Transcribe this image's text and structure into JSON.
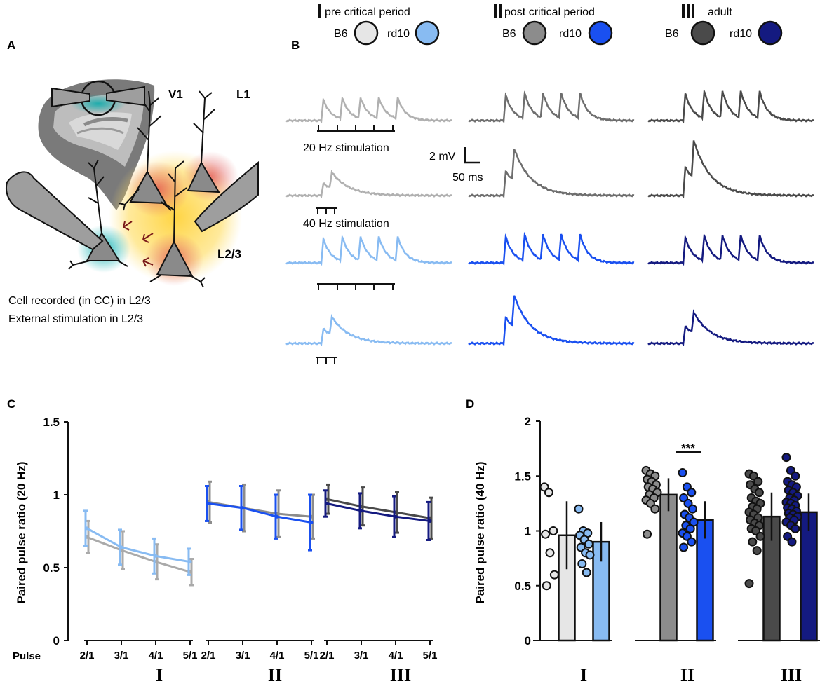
{
  "panels": {
    "a": "A",
    "b": "B",
    "c": "C",
    "d": "D"
  },
  "legend": {
    "groups": [
      {
        "numeral": "I",
        "label": "pre critical period",
        "b6_label": "B6",
        "rd10_label": "rd10",
        "b6_color": "#e6e6e6",
        "rd10_color": "#88bbf2"
      },
      {
        "numeral": "II",
        "label": "post critical period",
        "b6_label": "B6",
        "rd10_label": "rd10",
        "b6_color": "#8c8c8c",
        "rd10_color": "#1a50f0"
      },
      {
        "numeral": "III",
        "label": "adult",
        "b6_label": "B6",
        "rd10_label": "rd10",
        "b6_color": "#4a4a4a",
        "rd10_color": "#141a80"
      }
    ]
  },
  "schematic": {
    "label_v1": "V1",
    "label_l1": "L1",
    "label_l23": "L2/3",
    "caption_line1": "Cell recorded (in CC) in L2/3",
    "caption_line2": "External stimulation in L2/3"
  },
  "traces": {
    "stim20_label": "20 Hz stimulation",
    "stim40_label": "40 Hz stimulation",
    "scale_mv": "2 mV",
    "scale_ms": "50 ms"
  },
  "chart_data": [
    {
      "type": "line",
      "panel": "C",
      "ylabel": "Paired pulse ratio (20 Hz)",
      "xlabel": "Pulse",
      "ylim": [
        0,
        1.5
      ],
      "yticks": [
        0,
        0.5,
        1,
        1.5
      ],
      "ytick_labels": [
        "0",
        "0.5",
        "1",
        "1.5"
      ],
      "categories": [
        "2/1",
        "3/1",
        "4/1",
        "5/1"
      ],
      "groups": [
        {
          "numeral": "I",
          "series": [
            {
              "name": "B6",
              "color": "#aaaaaa",
              "values": [
                0.71,
                0.62,
                0.54,
                0.47
              ],
              "errors": [
                0.11,
                0.13,
                0.12,
                0.09
              ]
            },
            {
              "name": "rd10",
              "color": "#88bbf2",
              "values": [
                0.77,
                0.64,
                0.58,
                0.54
              ],
              "errors": [
                0.12,
                0.12,
                0.12,
                0.09
              ]
            }
          ]
        },
        {
          "numeral": "II",
          "series": [
            {
              "name": "B6",
              "color": "#8c8c8c",
              "values": [
                0.95,
                0.91,
                0.87,
                0.85
              ],
              "errors": [
                0.14,
                0.16,
                0.16,
                0.15
              ]
            },
            {
              "name": "rd10",
              "color": "#1a50f0",
              "values": [
                0.94,
                0.91,
                0.85,
                0.81
              ],
              "errors": [
                0.12,
                0.15,
                0.15,
                0.19
              ]
            }
          ]
        },
        {
          "numeral": "III",
          "series": [
            {
              "name": "B6",
              "color": "#4a4a4a",
              "values": [
                0.97,
                0.92,
                0.88,
                0.84
              ],
              "errors": [
                0.1,
                0.13,
                0.14,
                0.14
              ]
            },
            {
              "name": "rd10",
              "color": "#141a80",
              "values": [
                0.94,
                0.89,
                0.85,
                0.82
              ],
              "errors": [
                0.09,
                0.12,
                0.14,
                0.13
              ]
            }
          ]
        }
      ]
    },
    {
      "type": "bar",
      "panel": "D",
      "ylabel": "Paired pulse ratio (40 Hz)",
      "ylim": [
        0,
        2
      ],
      "yticks": [
        0,
        0.5,
        1,
        1.5,
        2
      ],
      "ytick_labels": [
        "0",
        "0.5",
        "1",
        "1.5",
        "2"
      ],
      "significance": "***",
      "significance_group": "II",
      "groups": [
        {
          "numeral": "I",
          "bars": [
            {
              "name": "B6",
              "color": "#e6e6e6",
              "value": 0.96,
              "error": 0.31,
              "points": [
                1.4,
                1.35,
                1.0,
                0.97,
                0.8,
                0.6,
                0.5
              ]
            },
            {
              "name": "rd10",
              "color": "#88bbf2",
              "value": 0.9,
              "error": 0.18,
              "points": [
                1.2,
                1.0,
                0.98,
                0.96,
                0.92,
                0.88,
                0.85,
                0.8,
                0.78,
                0.7,
                0.62
              ]
            }
          ]
        },
        {
          "numeral": "II",
          "bars": [
            {
              "name": "B6",
              "color": "#8c8c8c",
              "value": 1.33,
              "error": 0.15,
              "points": [
                1.55,
                1.52,
                1.5,
                1.47,
                1.45,
                1.42,
                1.4,
                1.38,
                1.35,
                1.33,
                1.3,
                1.28,
                1.25,
                1.2,
                0.97
              ]
            },
            {
              "name": "rd10",
              "color": "#1a50f0",
              "value": 1.1,
              "error": 0.17,
              "points": [
                1.53,
                1.4,
                1.35,
                1.3,
                1.25,
                1.2,
                1.15,
                1.12,
                1.08,
                1.05,
                1.02,
                0.98,
                0.95,
                0.9,
                0.85
              ]
            }
          ]
        },
        {
          "numeral": "III",
          "bars": [
            {
              "name": "B6",
              "color": "#4a4a4a",
              "value": 1.13,
              "error": 0.22,
              "points": [
                1.52,
                1.5,
                1.45,
                1.42,
                1.38,
                1.35,
                1.3,
                1.27,
                1.25,
                1.22,
                1.2,
                1.17,
                1.15,
                1.12,
                1.1,
                1.07,
                1.05,
                1.02,
                1.0,
                0.95,
                0.9,
                0.82,
                0.52
              ]
            },
            {
              "name": "rd10",
              "color": "#141a80",
              "value": 1.17,
              "error": 0.17,
              "points": [
                1.67,
                1.55,
                1.5,
                1.45,
                1.42,
                1.4,
                1.37,
                1.35,
                1.32,
                1.3,
                1.28,
                1.26,
                1.25,
                1.23,
                1.21,
                1.2,
                1.18,
                1.16,
                1.15,
                1.13,
                1.12,
                1.1,
                1.08,
                1.05,
                1.02,
                0.95,
                0.9
              ]
            }
          ]
        }
      ]
    }
  ]
}
